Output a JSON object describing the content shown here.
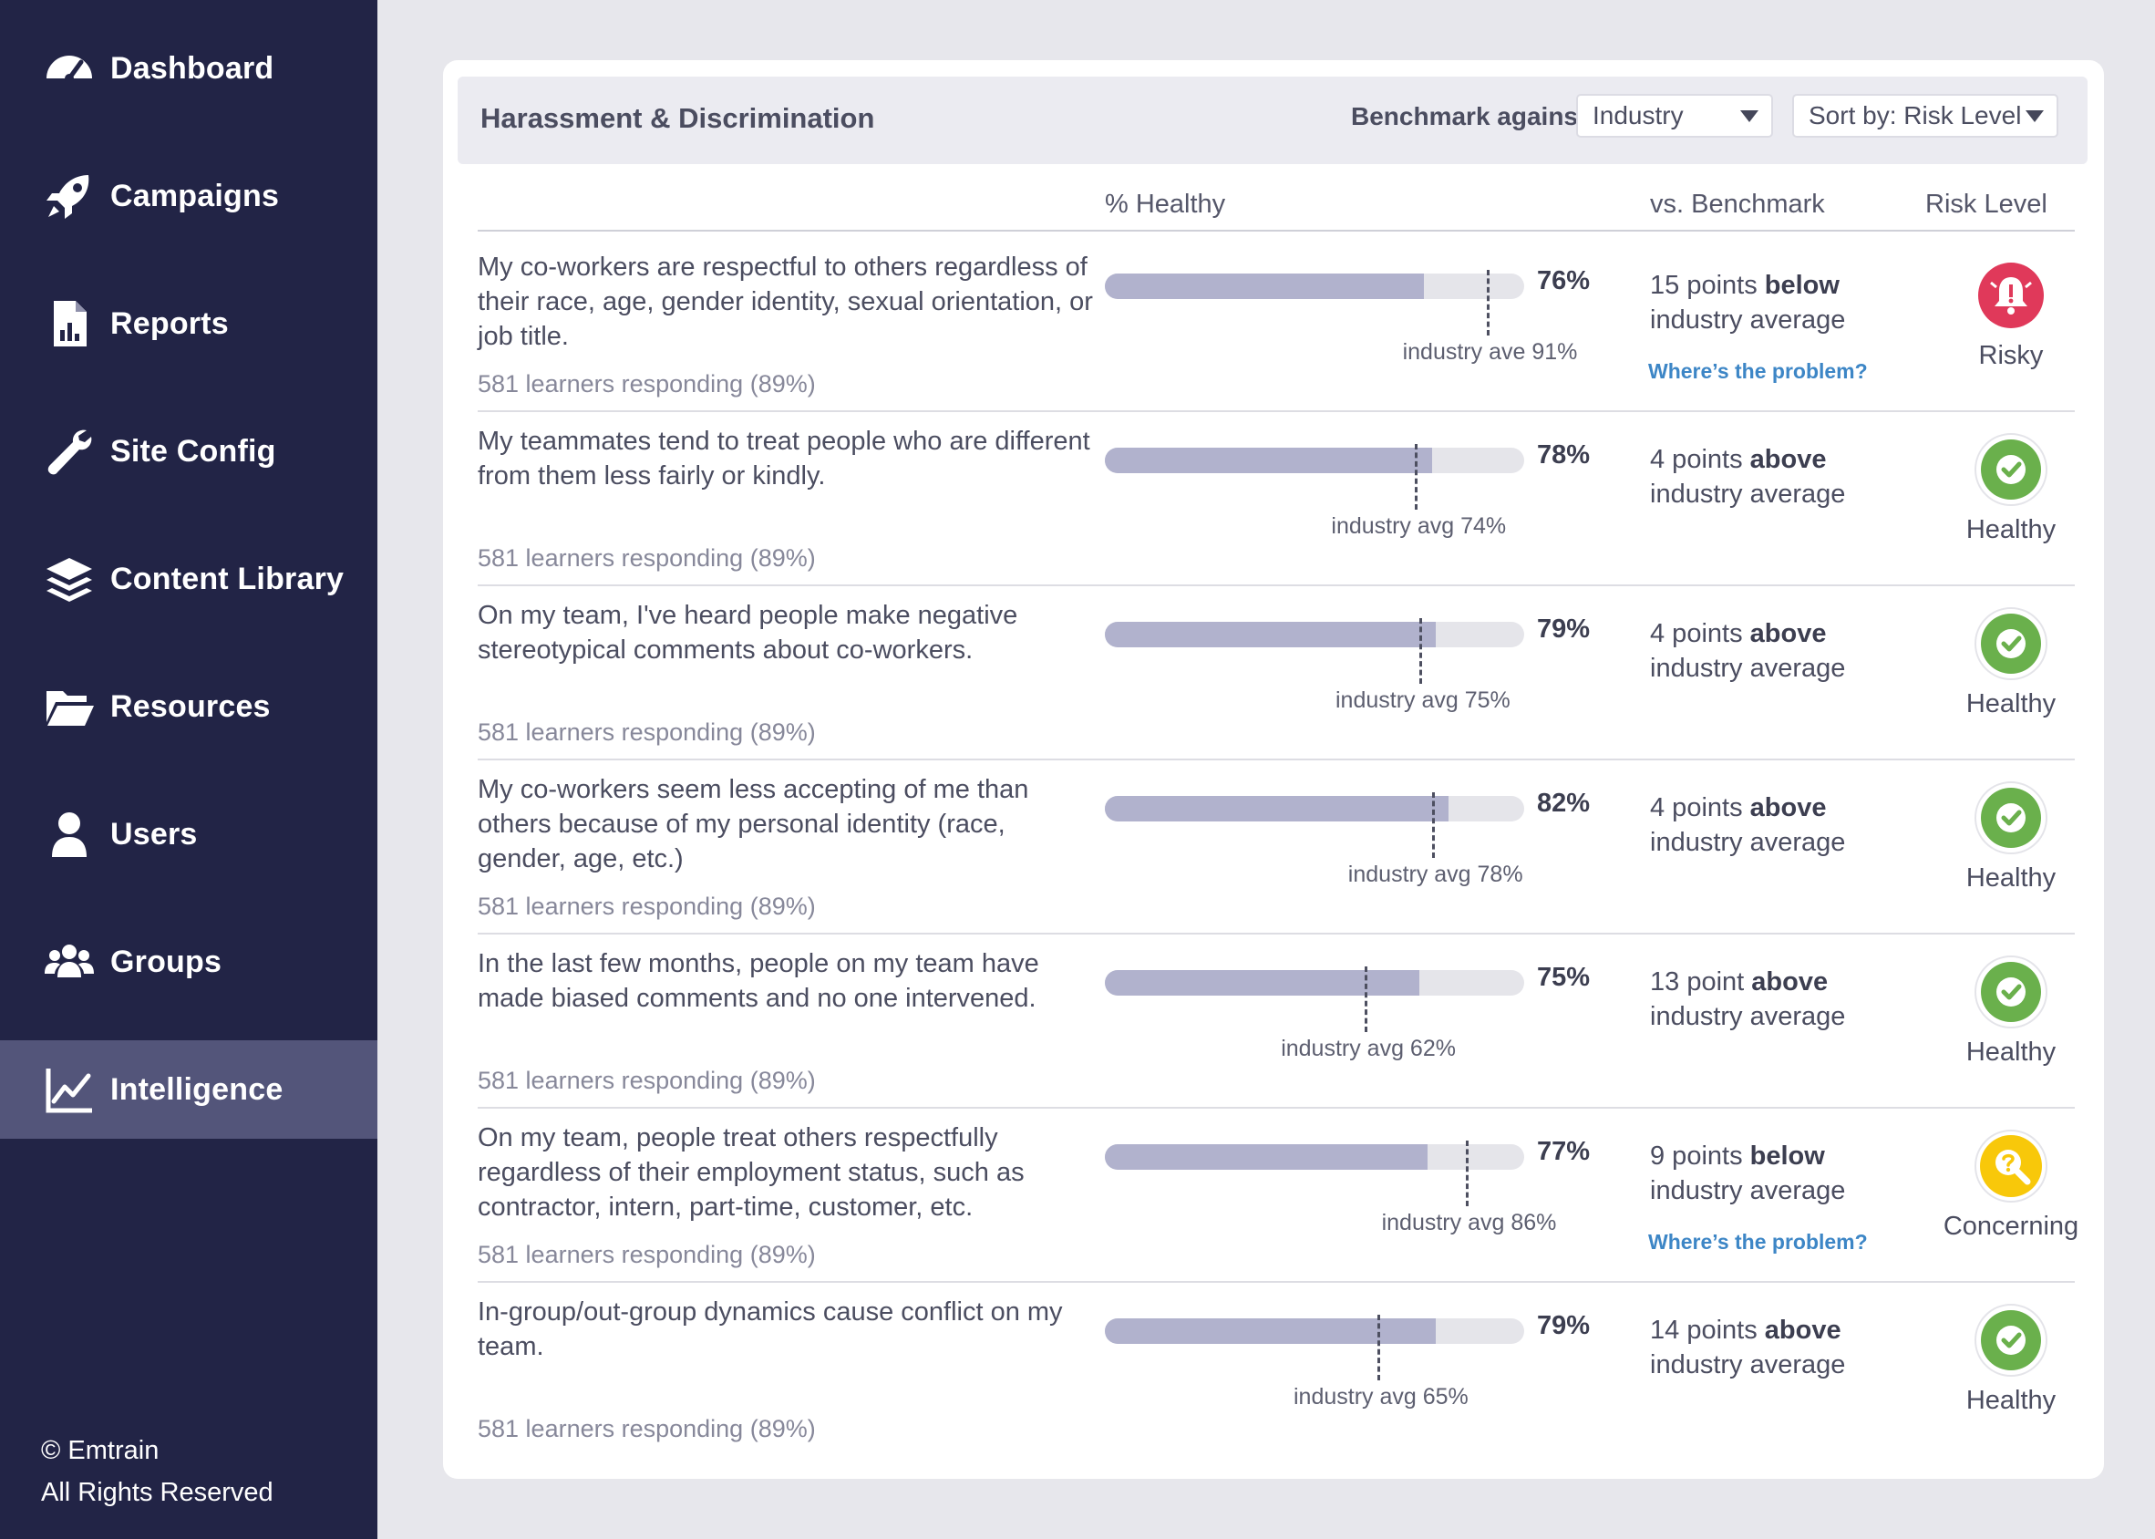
{
  "sidebar": {
    "items": [
      {
        "label": "Dashboard",
        "icon": "speedometer-icon"
      },
      {
        "label": "Campaigns",
        "icon": "rocket-icon"
      },
      {
        "label": "Reports",
        "icon": "report-file-icon"
      },
      {
        "label": "Site Config",
        "icon": "wrench-icon"
      },
      {
        "label": "Content Library",
        "icon": "layers-icon"
      },
      {
        "label": "Resources",
        "icon": "folder-open-icon"
      },
      {
        "label": "Users",
        "icon": "user-icon"
      },
      {
        "label": "Groups",
        "icon": "users-group-icon"
      },
      {
        "label": "Intelligence",
        "icon": "line-chart-icon"
      }
    ],
    "active": "Intelligence",
    "footer": {
      "copyright": "© Emtrain",
      "rights": "All Rights Reserved"
    }
  },
  "panel": {
    "title": "Harassment & Discrimination",
    "benchmark_label": "Benchmark against:",
    "benchmark_value": "Industry",
    "sort_value": "Sort by: Risk Level"
  },
  "columns": {
    "healthy": "% Healthy",
    "benchmark": "vs. Benchmark",
    "risk": "Risk Level"
  },
  "colors": {
    "sidebar": "#222446",
    "active": "#53557a",
    "bar_fill": "#b1b2cd",
    "bar_track": "#e5e5ea",
    "risky": "#e0395a",
    "healthy": "#6ab04c",
    "concerning": "#f8c80a",
    "link": "#3d86c6"
  },
  "rows": [
    {
      "question": "My co-workers are respectful to others regardless of their race, age, gender identity, sexual orientation, or job title.",
      "responding": "581 learners responding (89%)",
      "healthy": 76,
      "pct_label": "76%",
      "benchmark": 91,
      "benchmark_label": "industry ave 91%",
      "vs_pre": "15 points ",
      "vs_dir": "below",
      "vs_post": "industry average",
      "link": "Where’s the problem?",
      "risk": "Risky",
      "risk_icon": "alarm-bell-icon"
    },
    {
      "question": "My teammates tend to treat people who are different from them less fairly or kindly.",
      "responding": "581 learners responding (89%)",
      "healthy": 78,
      "pct_label": "78%",
      "benchmark": 74,
      "benchmark_label": "industry avg 74%",
      "vs_pre": "4 points ",
      "vs_dir": "above",
      "vs_post": "industry average",
      "link": "",
      "risk": "Healthy",
      "risk_icon": "check-circle-icon"
    },
    {
      "question": "On my team, I've heard people make negative stereotypical comments about co-workers.",
      "responding": "581 learners responding (89%)",
      "healthy": 79,
      "pct_label": "79%",
      "benchmark": 75,
      "benchmark_label": "industry avg 75%",
      "vs_pre": "4 points ",
      "vs_dir": "above",
      "vs_post": "industry average",
      "link": "",
      "risk": "Healthy",
      "risk_icon": "check-circle-icon"
    },
    {
      "question": "My co-workers seem less accepting of me than others because of my personal identity (race, gender, age, etc.)",
      "responding": "581 learners responding (89%)",
      "healthy": 82,
      "pct_label": "82%",
      "benchmark": 78,
      "benchmark_label": "industry avg 78%",
      "vs_pre": "4 points ",
      "vs_dir": "above",
      "vs_post": "industry average",
      "link": "",
      "risk": "Healthy",
      "risk_icon": "check-circle-icon"
    },
    {
      "question": "In the last few months, people on my team have made biased comments and no one intervened.",
      "responding": "581 learners responding (89%)",
      "healthy": 75,
      "pct_label": "75%",
      "benchmark": 62,
      "benchmark_label": "industry avg 62%",
      "vs_pre": "13 point ",
      "vs_dir": "above",
      "vs_post": "industry average",
      "link": "",
      "risk": "Healthy",
      "risk_icon": "check-circle-icon"
    },
    {
      "question": "On my team, people treat others respectfully regardless of their employment status, such as contractor, intern, part-time, customer, etc.",
      "responding": "581 learners responding (89%)",
      "healthy": 77,
      "pct_label": "77%",
      "benchmark": 86,
      "benchmark_label": "industry avg 86%",
      "vs_pre": "9 points ",
      "vs_dir": "below",
      "vs_post": "industry average",
      "link": "Where’s the problem?",
      "risk": "Concerning",
      "risk_icon": "magnifier-question-icon"
    },
    {
      "question": "In-group/out-group dynamics cause conflict on my team.",
      "responding": "581 learners responding (89%)",
      "healthy": 79,
      "pct_label": "79%",
      "benchmark": 65,
      "benchmark_label": "industry avg 65%",
      "vs_pre": "14 points ",
      "vs_dir": "above",
      "vs_post": "industry average",
      "link": "",
      "risk": "Healthy",
      "risk_icon": "check-circle-icon"
    }
  ]
}
